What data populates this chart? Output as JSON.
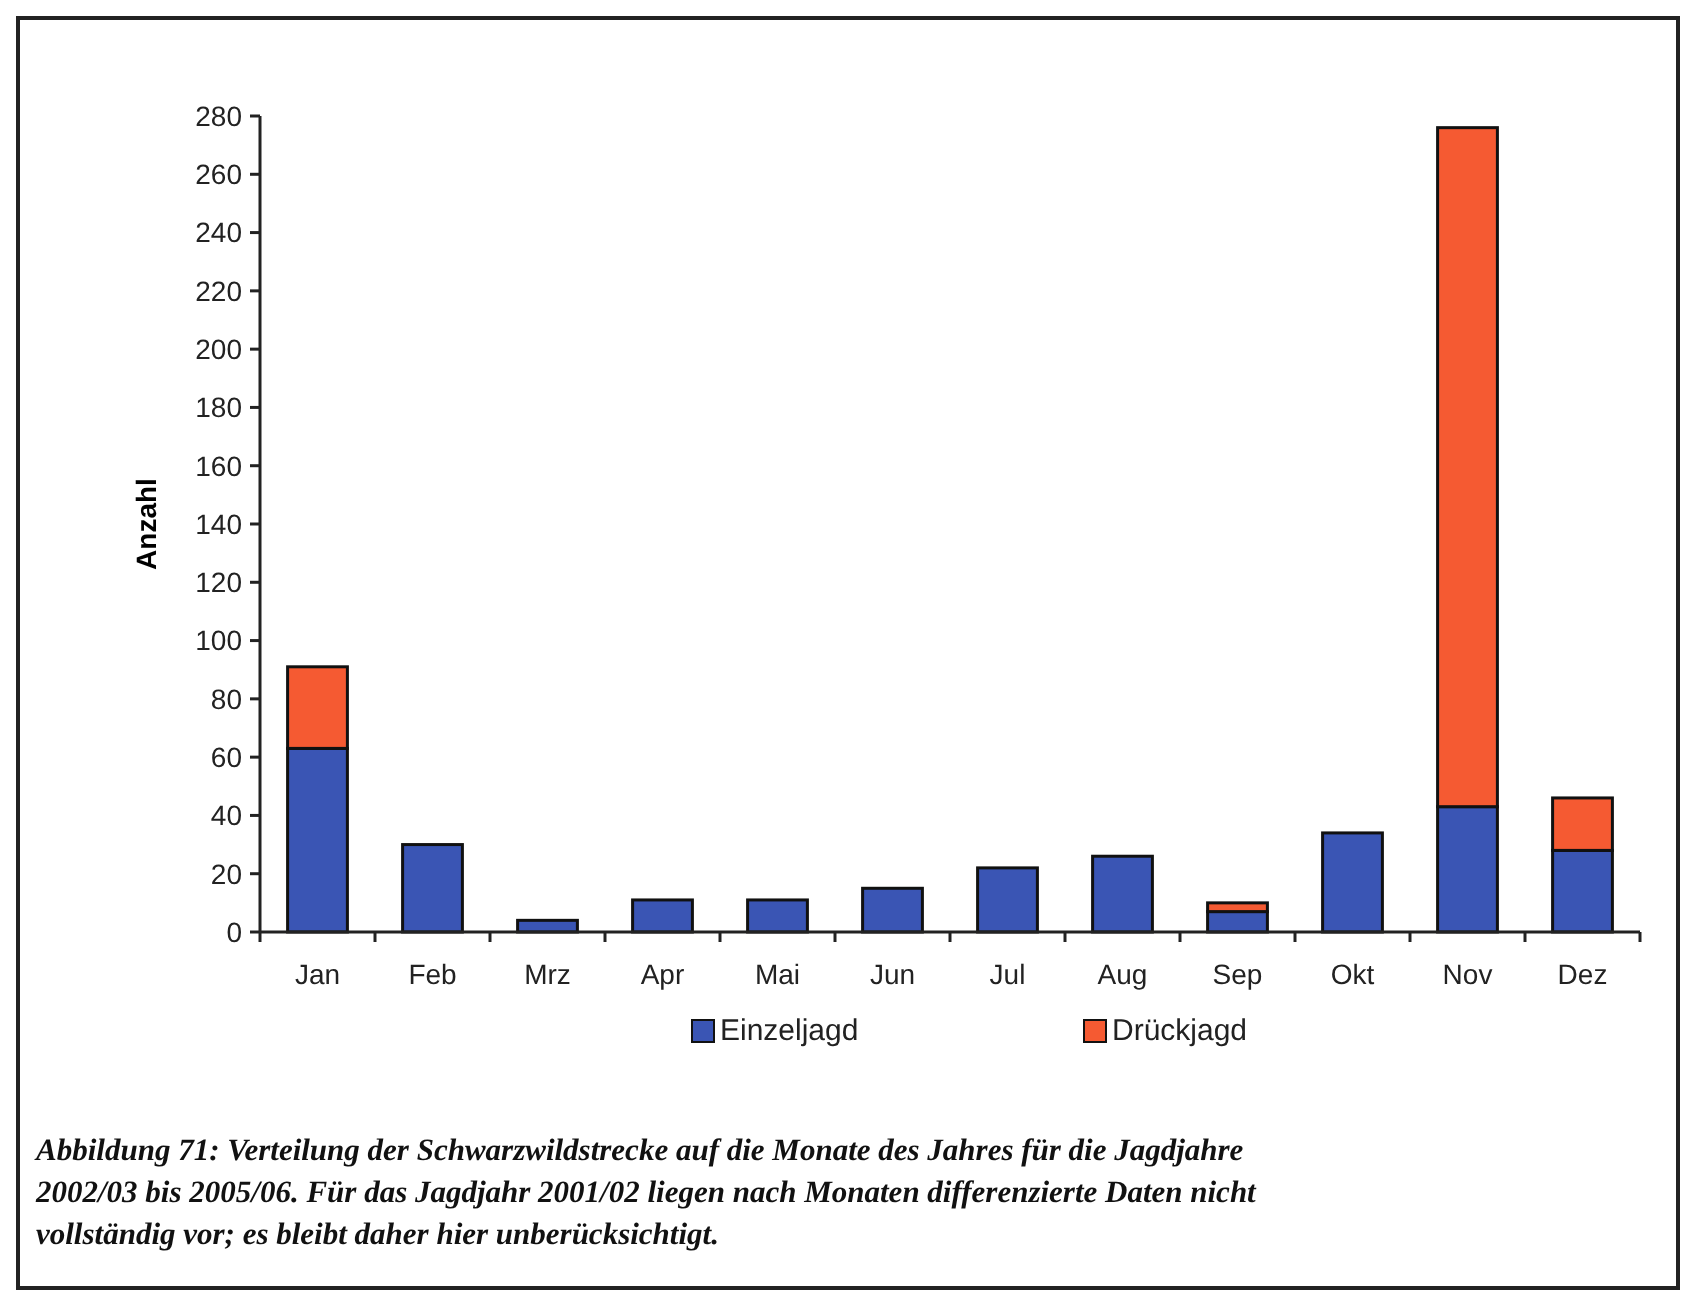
{
  "chart_data": {
    "type": "bar",
    "ylabel": "Anzahl",
    "categories": [
      "Jan",
      "Feb",
      "Mrz",
      "Apr",
      "Mai",
      "Jun",
      "Jul",
      "Aug",
      "Sep",
      "Okt",
      "Nov",
      "Dez"
    ],
    "series": [
      {
        "name": "Einzeljagd",
        "color": "#3a55b4",
        "values": [
          63,
          30,
          4,
          11,
          11,
          15,
          22,
          26,
          7,
          34,
          43,
          28
        ]
      },
      {
        "name": "Drückjagd",
        "color": "#f55a32",
        "values": [
          28,
          0,
          0,
          0,
          0,
          0,
          0,
          0,
          3,
          0,
          233,
          18
        ]
      }
    ],
    "stacked": true,
    "ylim": [
      0,
      280
    ],
    "yticks": [
      0,
      20,
      40,
      60,
      80,
      100,
      120,
      140,
      160,
      180,
      200,
      220,
      240,
      260,
      280
    ],
    "legend": "bottom",
    "grid": false,
    "annotations": [
      "Abbildung 71: Verteilung der Schwarzwildstrecke auf die Monate des Jahres für die Jagdjahre 2002/03 bis 2005/06. Für das Jagdjahr 2001/02 liegen nach Monaten differenzierte Daten nicht vollständig vor; es bleibt daher hier unberücksichtigt."
    ]
  }
}
